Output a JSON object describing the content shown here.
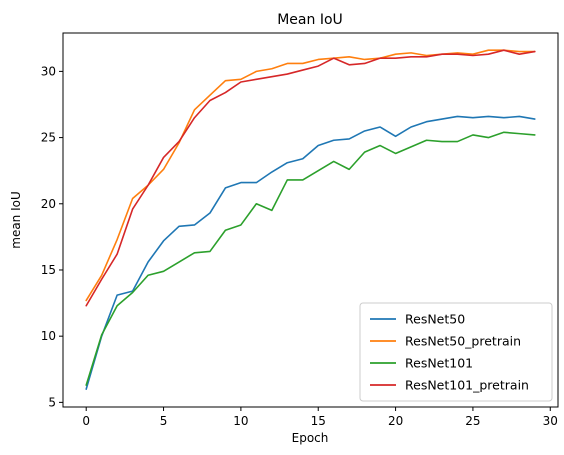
{
  "chart_data": {
    "type": "line",
    "title": "Mean IoU",
    "xlabel": "Epoch",
    "ylabel": "mean IoU",
    "xlim": [
      -1.5,
      30.5
    ],
    "ylim": [
      4.65,
      32.9
    ],
    "xticks": [
      0,
      5,
      10,
      15,
      20,
      25,
      30
    ],
    "yticks": [
      5,
      10,
      15,
      20,
      25,
      30
    ],
    "grid": false,
    "legend_position": "lower-right",
    "x": [
      0,
      1,
      2,
      3,
      4,
      5,
      6,
      7,
      8,
      9,
      10,
      11,
      12,
      13,
      14,
      15,
      16,
      17,
      18,
      19,
      20,
      21,
      22,
      23,
      24,
      25,
      26,
      27,
      28,
      29
    ],
    "series": [
      {
        "name": "ResNet50",
        "color": "#1f77b4",
        "values": [
          6.0,
          10.0,
          13.1,
          13.4,
          15.6,
          17.2,
          18.3,
          18.4,
          19.3,
          21.2,
          21.6,
          21.6,
          22.4,
          23.1,
          23.4,
          24.4,
          24.8,
          24.9,
          25.5,
          25.8,
          25.1,
          25.8,
          26.2,
          26.4,
          26.6,
          26.5,
          26.6,
          26.5,
          26.6,
          26.4
        ]
      },
      {
        "name": "ResNet50_pretrain",
        "color": "#ff7f0e",
        "values": [
          12.7,
          14.6,
          17.3,
          20.4,
          21.4,
          22.6,
          24.6,
          27.1,
          28.2,
          29.3,
          29.4,
          30.0,
          30.2,
          30.6,
          30.6,
          30.9,
          31.0,
          31.1,
          30.9,
          31.0,
          31.3,
          31.4,
          31.2,
          31.3,
          31.4,
          31.3,
          31.6,
          31.6,
          31.5,
          31.5
        ]
      },
      {
        "name": "ResNet101",
        "color": "#2ca02c",
        "values": [
          6.3,
          10.1,
          12.3,
          13.3,
          14.6,
          14.9,
          15.6,
          16.3,
          16.4,
          18.0,
          18.4,
          20.0,
          19.5,
          21.8,
          21.8,
          22.5,
          23.2,
          22.6,
          23.9,
          24.4,
          23.8,
          24.3,
          24.8,
          24.7,
          24.7,
          25.2,
          25.0,
          25.4,
          25.3,
          25.2
        ]
      },
      {
        "name": "ResNet101_pretrain",
        "color": "#d62728",
        "values": [
          12.3,
          14.3,
          16.2,
          19.6,
          21.4,
          23.5,
          24.7,
          26.5,
          27.8,
          28.4,
          29.2,
          29.4,
          29.6,
          29.8,
          30.1,
          30.4,
          31.0,
          30.5,
          30.6,
          31.0,
          31.0,
          31.1,
          31.1,
          31.3,
          31.3,
          31.2,
          31.3,
          31.6,
          31.3,
          31.5
        ]
      }
    ]
  }
}
